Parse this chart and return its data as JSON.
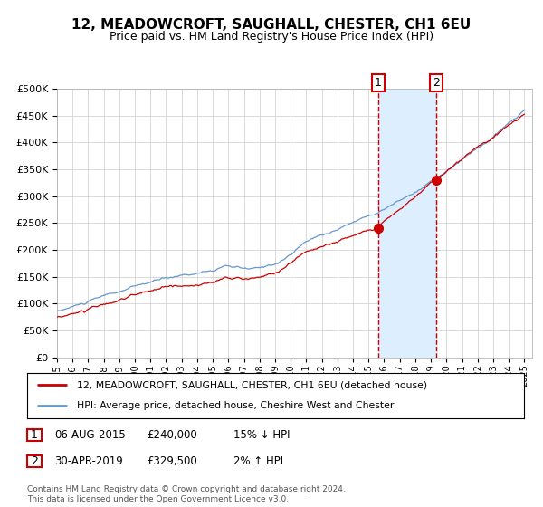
{
  "title1": "12, MEADOWCROFT, SAUGHALL, CHESTER, CH1 6EU",
  "title2": "Price paid vs. HM Land Registry's House Price Index (HPI)",
  "legend_line1": "12, MEADOWCROFT, SAUGHALL, CHESTER, CH1 6EU (detached house)",
  "legend_line2": "HPI: Average price, detached house, Cheshire West and Chester",
  "transaction1_date": "06-AUG-2015",
  "transaction1_price": 240000,
  "transaction1_note": "15% ↓ HPI",
  "transaction2_date": "30-APR-2019",
  "transaction2_price": 329500,
  "transaction2_note": "2% ↑ HPI",
  "footer": "Contains HM Land Registry data © Crown copyright and database right 2024.\nThis data is licensed under the Open Government Licence v3.0.",
  "red_color": "#cc0000",
  "blue_color": "#6699cc",
  "highlight_color": "#ddeeff",
  "ylim": [
    0,
    500000
  ],
  "year_start": 1995,
  "year_end": 2025,
  "transaction1_year": 2015.6,
  "transaction2_year": 2019.33
}
